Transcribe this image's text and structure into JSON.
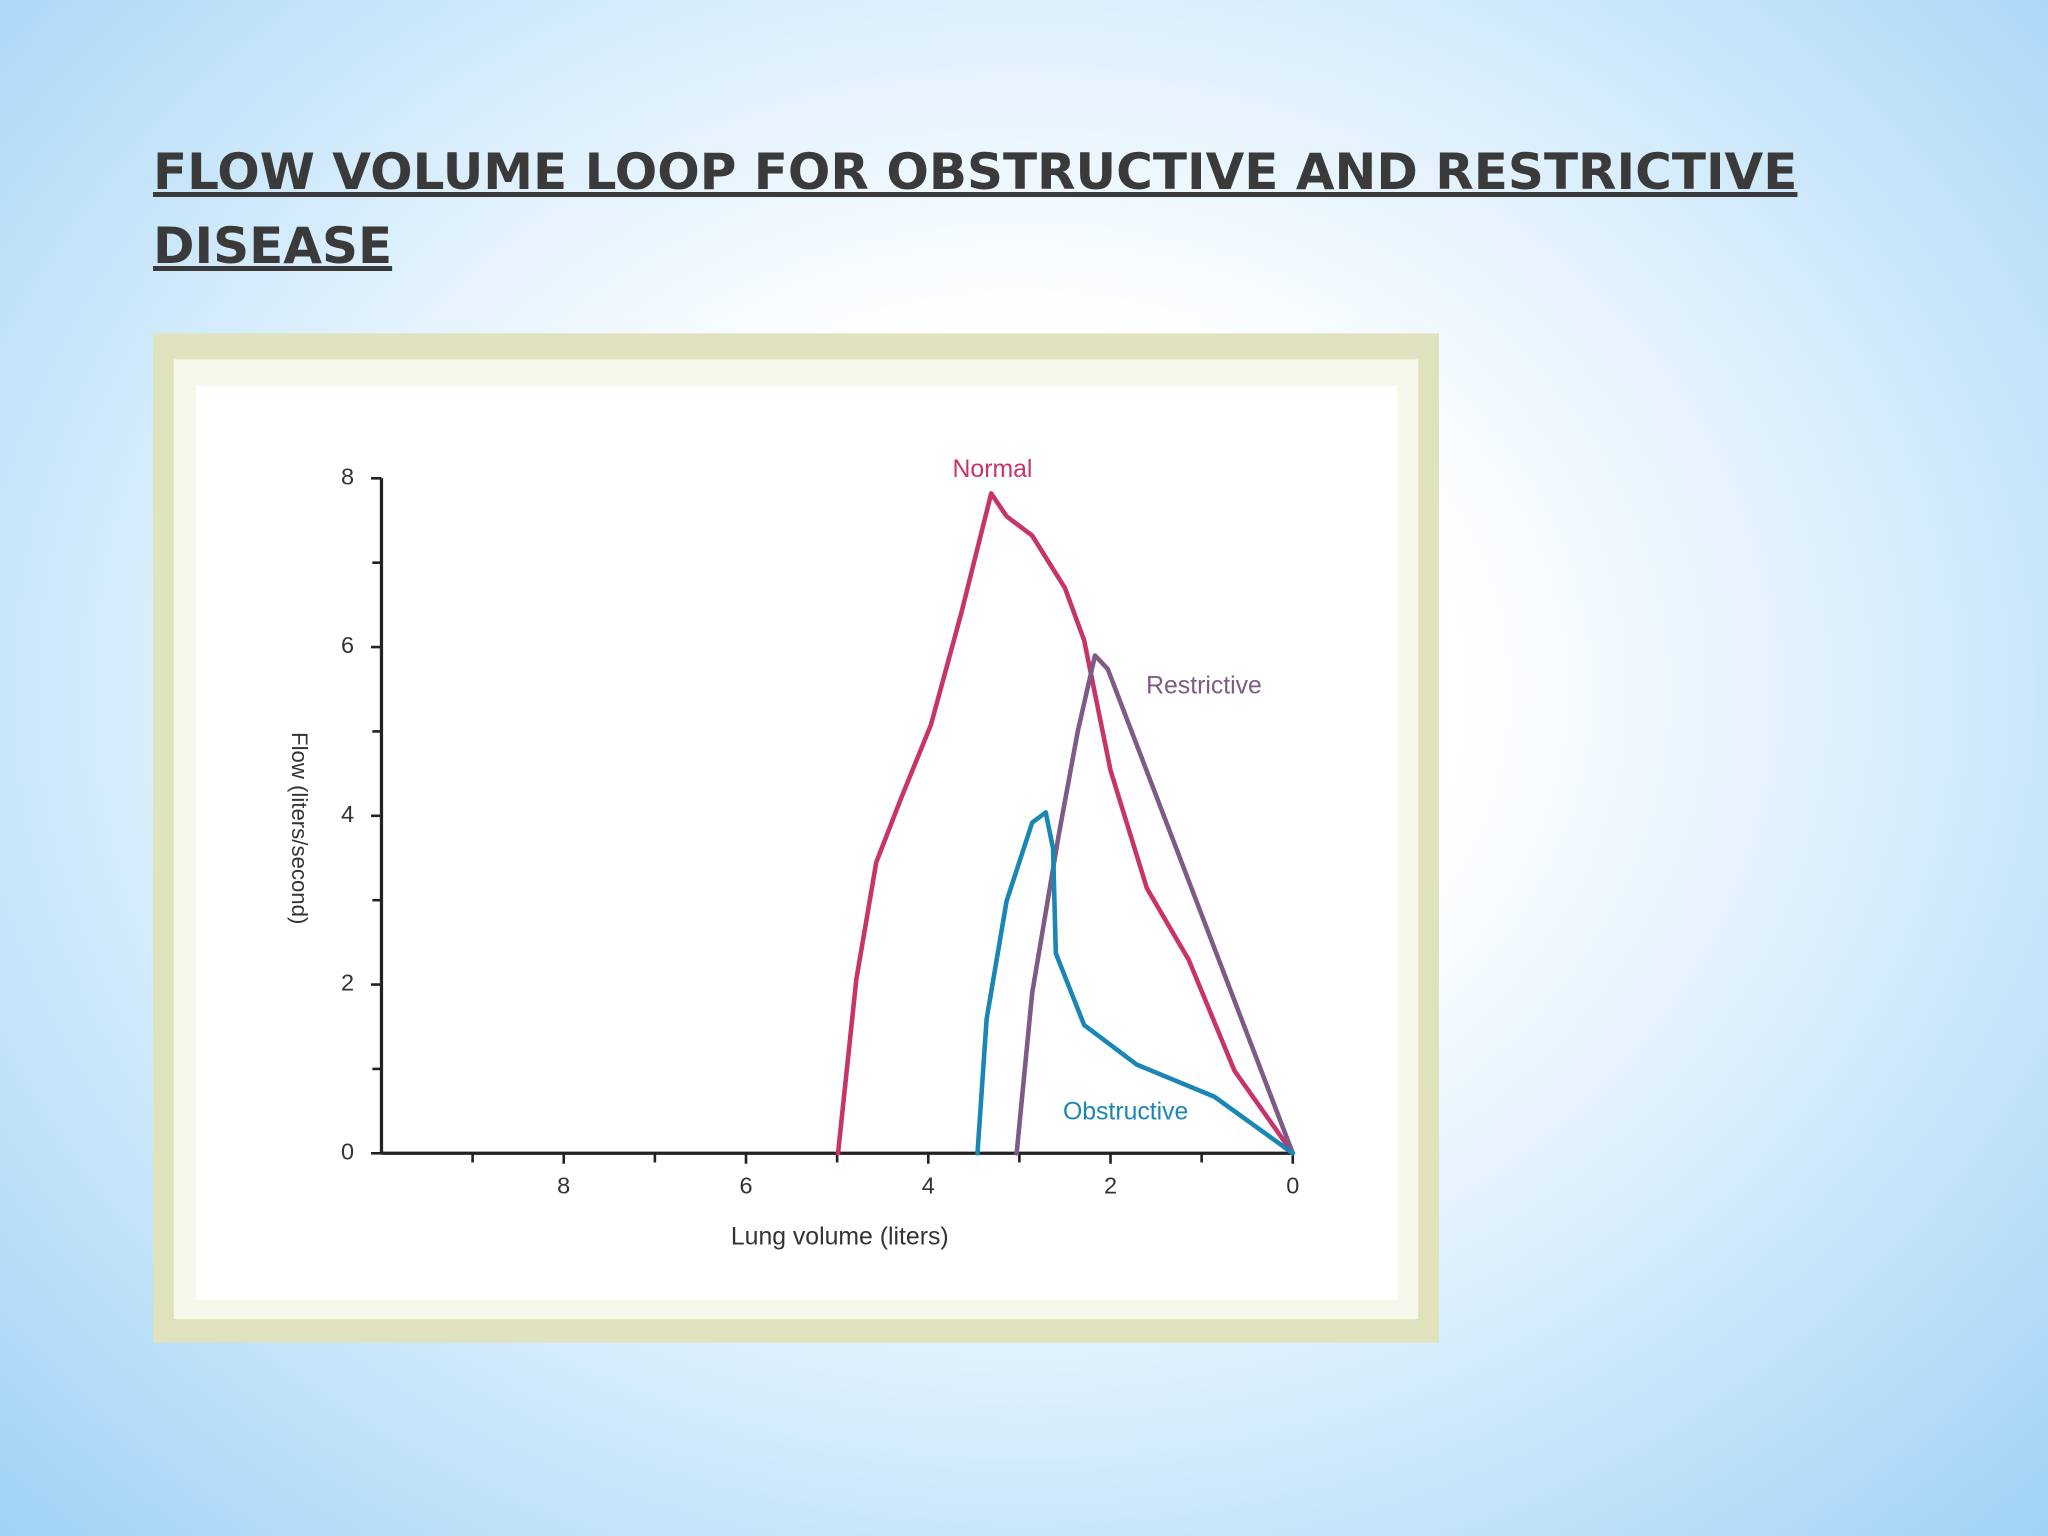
{
  "slide": {
    "title": "FLOW VOLUME LOOP FOR OBSTRUCTIVE AND RESTRICTIVE DISEASE"
  },
  "chart_data": {
    "type": "line",
    "x_label": "Lung volume (liters)",
    "y_label": "Flow (liters/second)",
    "xlim": [
      10,
      0
    ],
    "xticks": [
      8,
      6,
      4,
      2,
      0
    ],
    "xminorticks": [
      9,
      7,
      5,
      3,
      1
    ],
    "ylim": [
      0,
      8
    ],
    "yticks": [
      0,
      2,
      4,
      6,
      8
    ],
    "yminorticks": [
      1,
      3,
      5,
      7
    ],
    "series": [
      {
        "name": "Normal",
        "color": "#c8336a",
        "x": [
          4.99,
          4.79,
          4.57,
          4.29,
          3.97,
          3.64,
          3.31,
          3.14,
          2.86,
          2.5,
          2.29,
          2.0,
          1.6,
          1.14,
          0.64,
          0
        ],
        "y": [
          0,
          2.06,
          3.45,
          4.23,
          5.08,
          6.39,
          7.82,
          7.55,
          7.32,
          6.7,
          6.08,
          4.54,
          3.14,
          2.29,
          0.98,
          0
        ]
      },
      {
        "name": "Restrictive",
        "color": "#7e5a86",
        "x": [
          3.03,
          2.86,
          2.57,
          2.36,
          2.17,
          2.03,
          0
        ],
        "y": [
          0,
          1.9,
          3.76,
          5.0,
          5.9,
          5.74,
          0
        ]
      },
      {
        "name": "Obstructive",
        "color": "#1a86b5",
        "x": [
          3.46,
          3.36,
          3.14,
          2.86,
          2.71,
          2.63,
          2.6,
          2.29,
          1.71,
          0.86,
          0
        ],
        "y": [
          0,
          1.59,
          2.99,
          3.92,
          4.04,
          3.61,
          2.37,
          1.52,
          1.05,
          0.67,
          0
        ]
      }
    ]
  }
}
